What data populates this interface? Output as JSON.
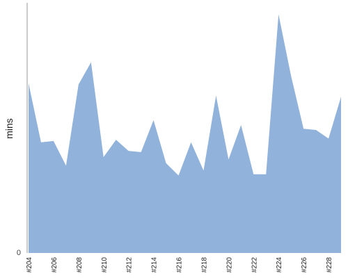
{
  "chart_data": {
    "type": "area",
    "ylabel": "mins",
    "y_ticks": [
      "0"
    ],
    "x": [
      "#204",
      "#205",
      "#206",
      "#207",
      "#208",
      "#209",
      "#210",
      "#211",
      "#212",
      "#213",
      "#214",
      "#215",
      "#216",
      "#217",
      "#218",
      "#219",
      "#220",
      "#221",
      "#222",
      "#223",
      "#224",
      "#225",
      "#226",
      "#227",
      "#228",
      "#229"
    ],
    "tick_labels": [
      "#204",
      "#206",
      "#208",
      "#210",
      "#212",
      "#214",
      "#216",
      "#218",
      "#220",
      "#222",
      "#224",
      "#226",
      "#228"
    ],
    "values": [
      69,
      45,
      45.5,
      35.5,
      68.5,
      77.5,
      39,
      46,
      41.5,
      41,
      54,
      36.5,
      31.5,
      45,
      33.5,
      64,
      38,
      52,
      32,
      32,
      97,
      72,
      50.5,
      50,
      46.5,
      63.5
    ],
    "ylim": [
      0,
      100
    ],
    "grid": false,
    "colors": {
      "fill": "#91b2da",
      "axis": "#999999"
    }
  }
}
